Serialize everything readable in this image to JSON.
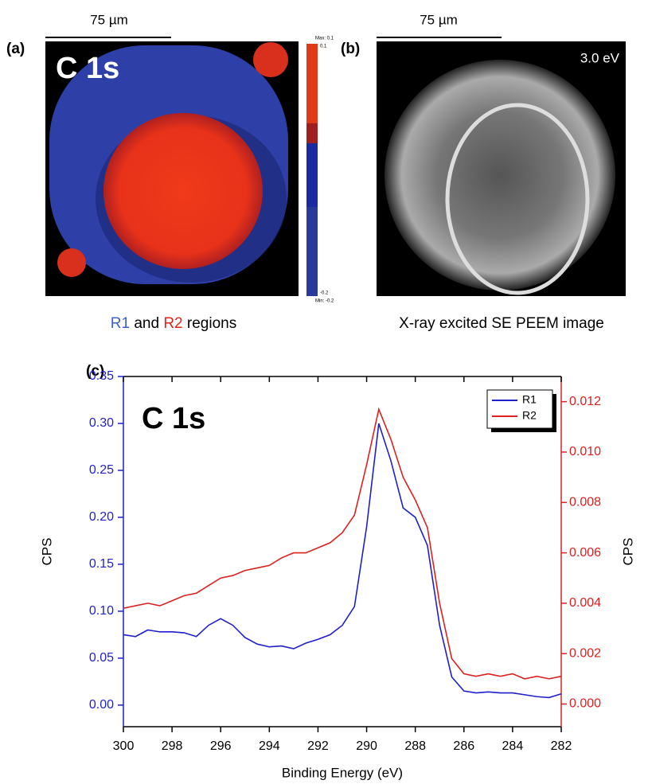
{
  "panel_a": {
    "label": "(a)",
    "scale": "75 µm",
    "title": "C 1s",
    "colorbar": [
      "Max: 0.1",
      "0.1",
      "-0.2",
      "Min: -0.2"
    ],
    "caption": {
      "r1": "R1",
      "mid": "and",
      "r2": "R2",
      "end": "regions"
    }
  },
  "panel_b": {
    "label": "(b)",
    "scale": "75 µm",
    "energy": "3.0 eV",
    "caption": "X-ray excited SE PEEM image"
  },
  "chart_data": {
    "type": "line",
    "panel_label": "(c)",
    "annotation": "C 1s",
    "x_label": "Binding Energy (eV)",
    "y_label": "CPS",
    "y2_label": "CPS",
    "x": [
      300,
      299.5,
      299,
      298.5,
      298,
      297.5,
      297,
      296.5,
      296,
      295.5,
      295,
      294.5,
      294,
      293.5,
      293,
      292.5,
      292,
      291.5,
      291,
      290.5,
      290,
      289.5,
      289,
      288.5,
      288,
      287.5,
      287,
      286.5,
      286,
      285.5,
      285,
      284.5,
      284,
      283.5,
      283,
      282.5,
      282
    ],
    "series": [
      {
        "name": "R1",
        "color": "#1f1fcc",
        "axis": "y",
        "values": [
          0.075,
          0.073,
          0.08,
          0.078,
          0.078,
          0.077,
          0.073,
          0.085,
          0.092,
          0.085,
          0.072,
          0.065,
          0.062,
          0.063,
          0.06,
          0.066,
          0.07,
          0.075,
          0.085,
          0.105,
          0.19,
          0.3,
          0.26,
          0.21,
          0.2,
          0.17,
          0.085,
          0.03,
          0.015,
          0.013,
          0.014,
          0.013,
          0.013,
          0.011,
          0.009,
          0.008,
          0.012
        ]
      },
      {
        "name": "R2",
        "color": "#dd2020",
        "axis": "y2",
        "values": [
          0.0038,
          0.0039,
          0.004,
          0.0039,
          0.0041,
          0.0043,
          0.0044,
          0.0047,
          0.005,
          0.0051,
          0.0053,
          0.0054,
          0.0055,
          0.0058,
          0.006,
          0.006,
          0.0062,
          0.0064,
          0.0068,
          0.0075,
          0.0095,
          0.0117,
          0.0105,
          0.009,
          0.0081,
          0.007,
          0.004,
          0.0018,
          0.0012,
          0.0011,
          0.0012,
          0.0011,
          0.0012,
          0.001,
          0.0011,
          0.001,
          0.0011
        ]
      }
    ],
    "xlim": [
      300,
      282
    ],
    "xticks": [
      300,
      298,
      296,
      294,
      292,
      290,
      288,
      286,
      284,
      282
    ],
    "ylim": [
      -0.023,
      0.35
    ],
    "yticks": [
      {
        "value": 0,
        "label": "0.00"
      },
      0.05,
      {
        "value": 0.1,
        "label": "0.10"
      },
      0.15,
      {
        "value": 0.2,
        "label": "0.20"
      },
      0.25,
      {
        "value": 0.3,
        "label": "0.30"
      },
      0.35
    ],
    "y2lim": [
      -0.0009,
      0.013
    ],
    "y2ticks": [
      {
        "value": 0,
        "label": "0.000"
      },
      {
        "value": 0.002,
        "label": "0.002"
      },
      {
        "value": 0.004,
        "label": "0.004"
      },
      {
        "value": 0.006,
        "label": "0.006"
      },
      {
        "value": 0.008,
        "label": "0.008"
      },
      {
        "value": 0.01,
        "label": "0.010"
      },
      {
        "value": 0.012,
        "label": "0.012"
      }
    ],
    "legend": "upper right"
  }
}
